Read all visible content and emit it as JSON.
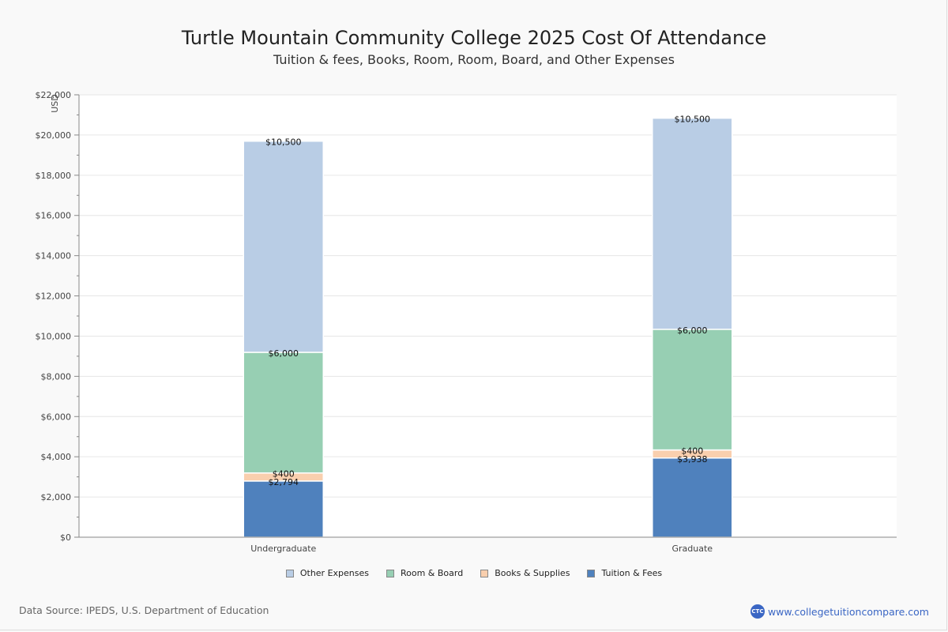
{
  "chart_data": {
    "type": "bar",
    "stacked": true,
    "title": "Turtle Mountain Community College 2025 Cost Of Attendance",
    "subtitle": "Tuition & fees, Books, Room, Room, Board, and Other Expenses",
    "xlabel": "",
    "ylabel": "USD",
    "ylim": [
      0,
      22000
    ],
    "yticks": [
      0,
      2000,
      4000,
      6000,
      8000,
      10000,
      12000,
      14000,
      16000,
      18000,
      20000,
      22000
    ],
    "ytick_labels": [
      "$0",
      "$2,000",
      "$4,000",
      "$6,000",
      "$8,000",
      "$10,000",
      "$12,000",
      "$14,000",
      "$16,000",
      "$18,000",
      "$20,000",
      "$22,000"
    ],
    "grid": true,
    "legend_position": "bottom",
    "categories": [
      "Undergraduate",
      "Graduate"
    ],
    "series": [
      {
        "name": "Tuition & Fees",
        "color": "#4f81bd",
        "values": [
          2794,
          3938
        ],
        "labels": [
          "$2,794",
          "$3,938"
        ]
      },
      {
        "name": "Books & Supplies",
        "color": "#f9cfae",
        "values": [
          400,
          400
        ],
        "labels": [
          "$400",
          "$400"
        ]
      },
      {
        "name": "Room & Board",
        "color": "#97cfb3",
        "values": [
          6000,
          6000
        ],
        "labels": [
          "$6,000",
          "$6,000"
        ]
      },
      {
        "name": "Other Expenses",
        "color": "#b9cde5",
        "values": [
          10500,
          10500
        ],
        "labels": [
          "$10,500",
          "$10,500"
        ]
      }
    ],
    "legend_order": [
      "Other Expenses",
      "Room & Board",
      "Books & Supplies",
      "Tuition & Fees"
    ]
  },
  "footer": {
    "source": "Data Source: IPEDS, U.S. Department of Education",
    "brand_logo": "CTC",
    "brand_url": "www.collegetuitioncompare.com"
  }
}
